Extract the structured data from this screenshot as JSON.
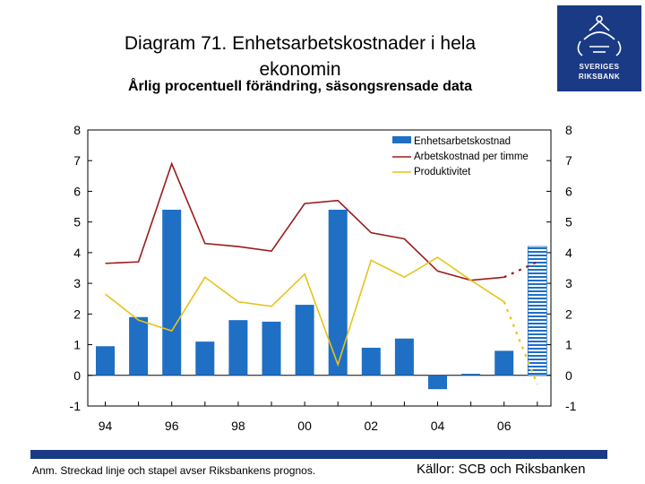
{
  "header": {
    "title_line1": "Diagram 71. Enhetsarbetskostnader i hela",
    "title_line2": "ekonomin",
    "subtitle": "Årlig procentuell förändring, säsongsrensade data"
  },
  "logo": {
    "line1": "SVERIGES",
    "line2": "RIKSBANK"
  },
  "footer": {
    "note": "Anm. Streckad linje och stapel avser Riksbankens prognos.",
    "source": "Källor: SCB och Riksbanken"
  },
  "colors": {
    "bar": "#1f6fc5",
    "labor_cost": "#9b1b1b",
    "productivity": "#e8c21a",
    "brand": "#1b3a85"
  },
  "chart_data": {
    "type": "bar",
    "x": [
      1994,
      1995,
      1996,
      1997,
      1998,
      1999,
      2000,
      2001,
      2002,
      2003,
      2004,
      2005,
      2006,
      2007
    ],
    "x_tick_labels": [
      "94",
      "96",
      "98",
      "00",
      "02",
      "04",
      "06"
    ],
    "x_tick_years": [
      1994,
      1996,
      1998,
      2000,
      2002,
      2004,
      2006
    ],
    "ylim": [
      -1,
      8
    ],
    "y_ticks": [
      -1,
      0,
      1,
      2,
      3,
      4,
      5,
      6,
      7,
      8
    ],
    "grid": false,
    "legend_position": "top-right",
    "forecast_from": 2007,
    "series": [
      {
        "name": "Enhetsarbetskostnad",
        "type": "bar",
        "values": [
          0.95,
          1.9,
          5.4,
          1.1,
          1.8,
          1.75,
          2.3,
          5.4,
          0.9,
          1.2,
          -0.45,
          0.05,
          0.8,
          4.2
        ]
      },
      {
        "name": "Arbetskostnad per timme",
        "type": "line",
        "values": [
          3.65,
          3.7,
          6.9,
          4.3,
          4.2,
          4.05,
          5.6,
          5.7,
          4.65,
          4.45,
          3.4,
          3.1,
          3.2,
          3.7
        ]
      },
      {
        "name": "Produktivitet",
        "type": "line",
        "values": [
          2.65,
          1.8,
          1.45,
          3.2,
          2.4,
          2.25,
          3.3,
          0.35,
          3.75,
          3.2,
          3.85,
          3.1,
          2.4,
          -0.3
        ]
      }
    ]
  }
}
